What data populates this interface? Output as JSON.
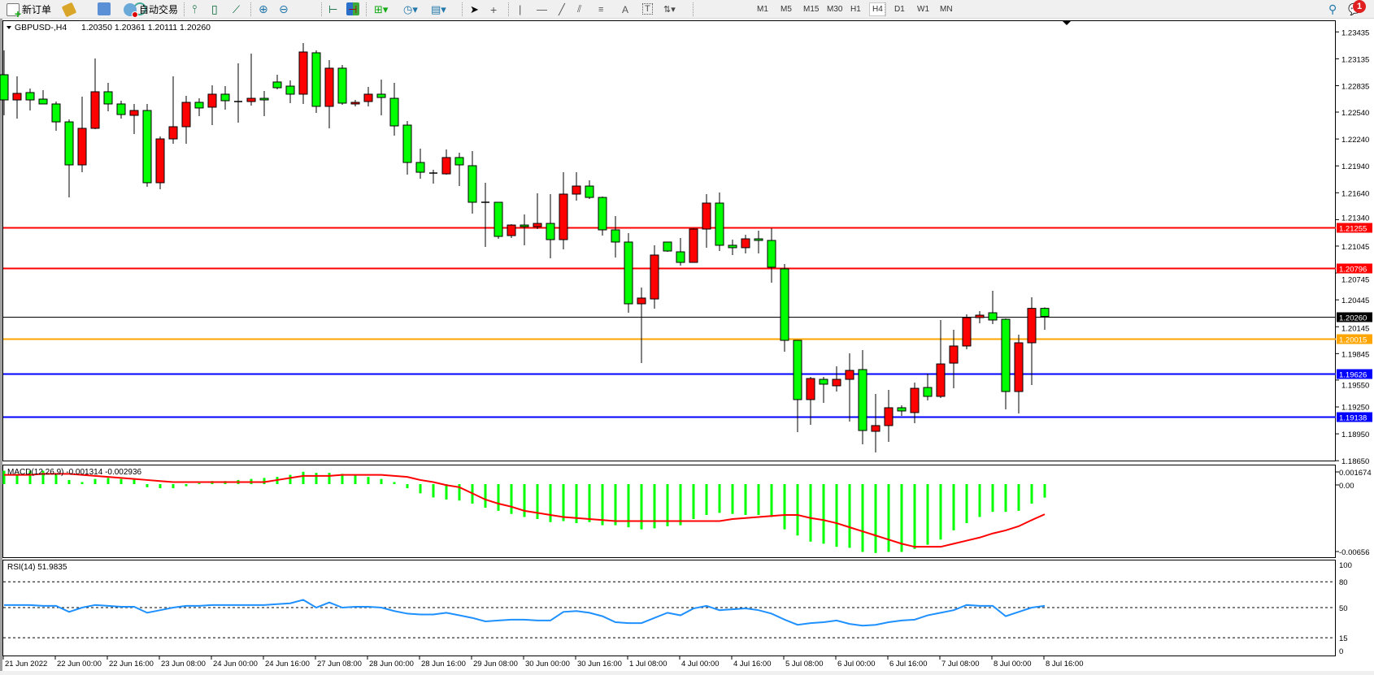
{
  "toolbar": {
    "new_order": "新订单",
    "auto_trading": "自动交易",
    "timeframes": [
      "M1",
      "M5",
      "M15",
      "M30",
      "H1",
      "H4",
      "D1",
      "W1",
      "MN"
    ],
    "active_timeframe": "H4",
    "notification_count": "1",
    "icons": [
      "new-order-icon",
      "market-watch-icon",
      "navigator-icon",
      "signals-icon",
      "auto-trading-icon",
      "bar-chart-icon",
      "candlestick-icon",
      "line-chart-icon",
      "zoom-in-icon",
      "zoom-out-icon",
      "tile-windows-icon",
      "chart-shift-icon",
      "autoscroll-icon",
      "add-indicator-icon",
      "periods-icon",
      "templates-icon",
      "cursor-icon",
      "crosshair-icon",
      "vertical-line-icon",
      "horizontal-line-icon",
      "trendline-icon",
      "equidistant-channel-icon",
      "fibonacci-icon",
      "text-icon",
      "text-label-icon",
      "arrows-icon",
      "search-icon",
      "notification-icon"
    ]
  },
  "chart": {
    "symbol_header": "GBPUSD-,H4",
    "ohlc_header": "1.20350 1.20361 1.20111 1.20260",
    "macd_label": "MACD(12,26,9) -0.001314 -0.002936",
    "rsi_label": "RSI(14) 51.9835",
    "colors": {
      "bull": "#ff0000",
      "bear": "#00ff00",
      "macd_hist": "#00ff00",
      "macd_signal": "#ff0000",
      "rsi": "#1e90ff"
    },
    "price_ticks": [
      "1.23435",
      "1.23135",
      "1.22835",
      "1.22540",
      "1.22240",
      "1.21940",
      "1.21640",
      "1.21340",
      "1.21045",
      "1.20745",
      "1.20445",
      "1.20145",
      "1.19845",
      "1.19550",
      "1.19250",
      "1.18950",
      "1.18650"
    ],
    "hlines": [
      {
        "price": "1.21255",
        "color": "#ff0000"
      },
      {
        "price": "1.20796",
        "color": "#ff0000"
      },
      {
        "price": "1.20260",
        "color": "#000000"
      },
      {
        "price": "1.20015",
        "color": "#ffa500"
      },
      {
        "price": "1.19626",
        "color": "#0000ff"
      },
      {
        "price": "1.19138",
        "color": "#0000ff"
      }
    ],
    "macd_ticks": [
      "0.001674",
      "0.00",
      "-0.00656"
    ],
    "rsi_ticks": [
      "100",
      "80",
      "50",
      "15",
      "0"
    ],
    "time_labels": [
      "21 Jun 2022",
      "22 Jun 00:00",
      "22 Jun 16:00",
      "23 Jun 08:00",
      "24 Jun 00:00",
      "24 Jun 16:00",
      "27 Jun 08:00",
      "28 Jun 00:00",
      "28 Jun 16:00",
      "29 Jun 08:00",
      "30 Jun 00:00",
      "30 Jun 16:00",
      "1 Jul 08:00",
      "4 Jul 00:00",
      "4 Jul 16:00",
      "5 Jul 08:00",
      "6 Jul 00:00",
      "6 Jul 16:00",
      "7 Jul 08:00",
      "8 Jul 00:00",
      "8 Jul 16:00"
    ]
  },
  "chart_data": {
    "type": "candlestick",
    "symbol": "GBPUSD-",
    "timeframe": "H4",
    "ylim": [
      1.1865,
      1.23435
    ],
    "ohlc_order": [
      "open",
      "high",
      "low",
      "close"
    ],
    "candles": [
      [
        1.22957,
        1.23229,
        1.22504,
        1.22676
      ],
      [
        1.22676,
        1.22939,
        1.22468,
        1.22749
      ],
      [
        1.22758,
        1.22803,
        1.22558,
        1.22676
      ],
      [
        1.22685,
        1.22785,
        1.22631,
        1.22631
      ],
      [
        1.22631,
        1.22658,
        1.22332,
        1.22431
      ],
      [
        1.22431,
        1.22459,
        1.21588,
        1.21951
      ],
      [
        1.21951,
        1.22712,
        1.21869,
        1.22359
      ],
      [
        1.22359,
        1.23138,
        1.2235,
        1.22767
      ],
      [
        1.22767,
        1.22867,
        1.22549,
        1.22631
      ],
      [
        1.22631,
        1.22667,
        1.22468,
        1.22513
      ],
      [
        1.22504,
        1.22631,
        1.22295,
        1.22558
      ],
      [
        1.22558,
        1.22631,
        1.21706,
        1.21752
      ],
      [
        1.21752,
        1.22268,
        1.21679,
        1.22241
      ],
      [
        1.22241,
        1.22939,
        1.22187,
        1.22377
      ],
      [
        1.22377,
        1.22721,
        1.22187,
        1.22649
      ],
      [
        1.22649,
        1.22694,
        1.22495,
        1.22586
      ],
      [
        1.22595,
        1.22839,
        1.22395,
        1.2274
      ],
      [
        1.2274,
        1.2283,
        1.22567,
        1.22667
      ],
      [
        1.22658,
        1.23084,
        1.22422,
        1.22658
      ],
      [
        1.22658,
        1.23193,
        1.22613,
        1.22694
      ],
      [
        1.22694,
        1.22776,
        1.22495,
        1.22676
      ],
      [
        1.22876,
        1.22957,
        1.22794,
        1.22812
      ],
      [
        1.2283,
        1.22894,
        1.2264,
        1.2274
      ],
      [
        1.2274,
        1.23311,
        1.22631,
        1.23211
      ],
      [
        1.23202,
        1.23229,
        1.22531,
        1.22604
      ],
      [
        1.22604,
        1.2312,
        1.22359,
        1.2303
      ],
      [
        1.2303,
        1.23066,
        1.22622,
        1.2264
      ],
      [
        1.22631,
        1.22676,
        1.22604,
        1.22649
      ],
      [
        1.22658,
        1.22821,
        1.22604,
        1.2274
      ],
      [
        1.2274,
        1.22903,
        1.22504,
        1.22703
      ],
      [
        1.22694,
        1.22867,
        1.22277,
        1.22386
      ],
      [
        1.22395,
        1.2244,
        1.21842,
        1.21978
      ],
      [
        1.21978,
        1.22132,
        1.21797,
        1.21869
      ],
      [
        1.2186,
        1.21897,
        1.21743,
        1.2186
      ],
      [
        1.21851,
        1.22123,
        1.21842,
        1.22033
      ],
      [
        1.22033,
        1.22087,
        1.21715,
        1.21951
      ],
      [
        1.21942,
        1.22105,
        1.21407,
        1.21534
      ],
      [
        1.21534,
        1.21752,
        1.21036,
        1.21534
      ],
      [
        1.21534,
        1.21534,
        1.21126,
        1.21153
      ],
      [
        1.21162,
        1.21289,
        1.21135,
        1.2128
      ],
      [
        1.2128,
        1.21398,
        1.21054,
        1.21262
      ],
      [
        1.21262,
        1.21634,
        1.21235,
        1.21298
      ],
      [
        1.21298,
        1.21625,
        1.20909,
        1.21117
      ],
      [
        1.21117,
        1.21869,
        1.21008,
        1.21625
      ],
      [
        1.21625,
        1.21869,
        1.21552,
        1.21715
      ],
      [
        1.21715,
        1.21779,
        1.2157,
        1.21588
      ],
      [
        1.21588,
        1.21598,
        1.21162,
        1.21226
      ],
      [
        1.21226,
        1.2138,
        1.20918,
        1.2109
      ],
      [
        1.2109,
        1.2119,
        1.20301,
        1.20401
      ],
      [
        1.20401,
        1.20582,
        1.19739,
        1.20465
      ],
      [
        1.20455,
        1.21054,
        1.20347,
        1.20945
      ],
      [
        1.2109,
        1.2109,
        1.20981,
        1.2099
      ],
      [
        1.20981,
        1.21135,
        1.20827,
        1.20863
      ],
      [
        1.20863,
        1.21244,
        1.20863,
        1.21235
      ],
      [
        1.21235,
        1.21625,
        1.21027,
        1.21525
      ],
      [
        1.21525,
        1.21643,
        1.2099,
        1.21054
      ],
      [
        1.21054,
        1.21117,
        1.20945,
        1.21027
      ],
      [
        1.21027,
        1.21172,
        1.20963,
        1.21126
      ],
      [
        1.21126,
        1.21217,
        1.20963,
        1.21108
      ],
      [
        1.21108,
        1.21244,
        1.20637,
        1.20809
      ],
      [
        1.20791,
        1.20845,
        1.19866,
        1.19993
      ],
      [
        1.19993,
        1.19993,
        1.18969,
        1.19332
      ],
      [
        1.19332,
        1.19585,
        1.19051,
        1.19567
      ],
      [
        1.19558,
        1.19585,
        1.19295,
        1.19504
      ],
      [
        1.19486,
        1.19703,
        1.19422,
        1.19558
      ],
      [
        1.19558,
        1.19848,
        1.19087,
        1.19658
      ],
      [
        1.19667,
        1.19884,
        1.18833,
        1.18987
      ],
      [
        1.18978,
        1.19395,
        1.18742,
        1.19042
      ],
      [
        1.19042,
        1.1944,
        1.1886,
        1.19241
      ],
      [
        1.19241,
        1.19268,
        1.1915,
        1.19205
      ],
      [
        1.19187,
        1.19522,
        1.19069,
        1.19458
      ],
      [
        1.19467,
        1.19622,
        1.19322,
        1.19368
      ],
      [
        1.19368,
        1.2022,
        1.1935,
        1.1973
      ],
      [
        1.19739,
        1.20111,
        1.19458,
        1.1993
      ],
      [
        1.1993,
        1.20283,
        1.19894,
        1.20247
      ],
      [
        1.20247,
        1.2032,
        1.20184,
        1.20274
      ],
      [
        1.20301,
        1.20546,
        1.20175,
        1.2022
      ],
      [
        1.20229,
        1.20238,
        1.19223,
        1.19422
      ],
      [
        1.19422,
        1.20057,
        1.19177,
        1.19966
      ],
      [
        1.19966,
        1.20474,
        1.19495,
        1.2035
      ],
      [
        1.2035,
        1.20361,
        1.20111,
        1.2026
      ]
    ],
    "macd": {
      "params": "12,26,9",
      "ylim": [
        -0.00656,
        0.001674
      ],
      "main": [
        0.0013,
        0.001,
        0.0013,
        0.0013,
        0.001,
        0.0004,
        0.0002,
        0.0005,
        0.0006,
        0.0005,
        0.0005,
        -0.0003,
        -0.0004,
        -0.0004,
        -0.0002,
        0.0001,
        0.0003,
        0.0003,
        0.0004,
        0.0005,
        0.0006,
        0.0007,
        0.0009,
        0.0012,
        0.0011,
        0.0011,
        0.001,
        0.0009,
        0.0007,
        0.0005,
        0.0002,
        -0.0004,
        -0.0009,
        -0.0013,
        -0.0015,
        -0.0016,
        -0.0019,
        -0.0023,
        -0.0026,
        -0.0029,
        -0.0032,
        -0.0034,
        -0.0037,
        -0.0036,
        -0.0038,
        -0.0037,
        -0.004,
        -0.004,
        -0.0042,
        -0.0044,
        -0.0043,
        -0.0041,
        -0.004,
        -0.0034,
        -0.003,
        -0.0028,
        -0.0029,
        -0.003,
        -0.003,
        -0.0032,
        -0.0044,
        -0.005,
        -0.0056,
        -0.0058,
        -0.0061,
        -0.0062,
        -0.0066,
        -0.0067,
        -0.0066,
        -0.0066,
        -0.0063,
        -0.0059,
        -0.0054,
        -0.0045,
        -0.0038,
        -0.0032,
        -0.0027,
        -0.0027,
        -0.0026,
        -0.0019,
        -0.001314
      ],
      "signal": [
        0.0009,
        0.0009,
        0.0009,
        0.001,
        0.001,
        0.001,
        0.0009,
        0.0008,
        0.0007,
        0.0006,
        0.0005,
        0.0004,
        0.0003,
        0.0002,
        0.0002,
        0.0002,
        0.0002,
        0.0002,
        0.0002,
        0.0002,
        0.0002,
        0.0004,
        0.0006,
        0.0008,
        0.0008,
        0.0008,
        0.0009,
        0.0009,
        0.0009,
        0.0009,
        0.0008,
        0.0007,
        0.0004,
        0.0002,
        -0.0001,
        -0.0003,
        -0.0009,
        -0.0015,
        -0.0019,
        -0.0022,
        -0.0026,
        -0.0028,
        -0.003,
        -0.0032,
        -0.0033,
        -0.0034,
        -0.0035,
        -0.0036,
        -0.0036,
        -0.0036,
        -0.0036,
        -0.0036,
        -0.0036,
        -0.0036,
        -0.0036,
        -0.0036,
        -0.0034,
        -0.0033,
        -0.0032,
        -0.0031,
        -0.003,
        -0.003,
        -0.0033,
        -0.0035,
        -0.0038,
        -0.0042,
        -0.0046,
        -0.005,
        -0.0054,
        -0.0058,
        -0.0061,
        -0.0061,
        -0.0061,
        -0.0058,
        -0.0055,
        -0.0052,
        -0.0048,
        -0.0045,
        -0.0041,
        -0.0035,
        -0.002936
      ]
    },
    "rsi": {
      "period": 14,
      "ylim": [
        0,
        100
      ],
      "levels": [
        80,
        50,
        15
      ],
      "values": [
        53,
        53,
        53,
        52,
        52,
        45,
        50,
        53,
        52,
        51,
        51,
        44,
        47,
        50,
        52,
        52,
        53,
        53,
        53,
        53,
        53,
        54,
        55,
        59,
        50,
        56,
        50,
        51,
        51,
        50,
        46,
        43,
        42,
        42,
        44,
        41,
        38,
        34,
        35,
        36,
        36,
        35,
        35,
        45,
        46,
        44,
        40,
        33,
        32,
        32,
        38,
        44,
        41,
        49,
        52,
        47,
        48,
        49,
        47,
        43,
        36,
        30,
        32,
        33,
        35,
        31,
        29,
        30,
        33,
        35,
        36,
        41,
        44,
        47,
        53,
        52,
        52,
        40,
        45,
        50,
        51.9835
      ]
    }
  }
}
